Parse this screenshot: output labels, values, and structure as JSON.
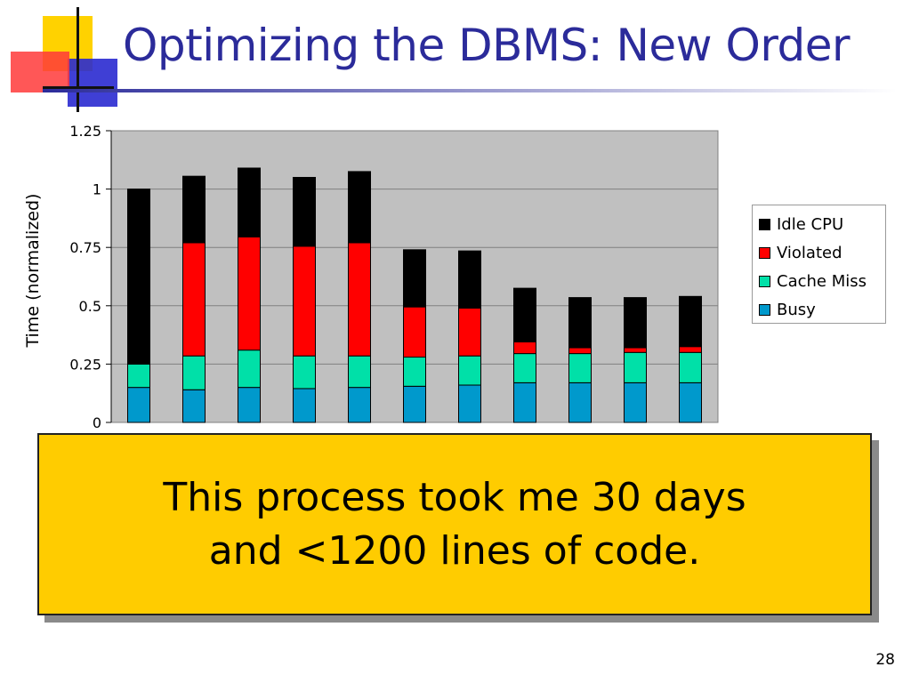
{
  "slide": {
    "title": "Optimizing the DBMS: New Order",
    "callout": {
      "line1": "This process took me 30 days",
      "line2": "and <1200 lines of code."
    },
    "page_number": "28"
  },
  "chart_data": {
    "type": "bar",
    "stacked": true,
    "title": "",
    "xlabel": "",
    "ylabel": "Time (normalized)",
    "ylim": [
      0,
      1.25
    ],
    "yticks": [
      "0",
      "0.25",
      "0.5",
      "0.75",
      "1",
      "1.25"
    ],
    "ytick_values": [
      0,
      0.25,
      0.5,
      0.75,
      1,
      1.25
    ],
    "grid": true,
    "legend_position": "right",
    "category_count": 11,
    "series": [
      {
        "name": "Busy",
        "color": "#0099cc",
        "values": [
          0.15,
          0.14,
          0.15,
          0.145,
          0.15,
          0.155,
          0.16,
          0.17,
          0.17,
          0.17,
          0.17
        ]
      },
      {
        "name": "Cache Miss",
        "color": "#00e0a8",
        "values": [
          0.1,
          0.145,
          0.16,
          0.14,
          0.135,
          0.125,
          0.125,
          0.125,
          0.125,
          0.13,
          0.13
        ]
      },
      {
        "name": "Violated",
        "color": "#ff0000",
        "values": [
          0.0,
          0.485,
          0.485,
          0.47,
          0.485,
          0.215,
          0.205,
          0.05,
          0.025,
          0.02,
          0.025
        ]
      },
      {
        "name": "Idle CPU",
        "color": "#000000",
        "values": [
          0.75,
          0.285,
          0.295,
          0.295,
          0.305,
          0.245,
          0.245,
          0.23,
          0.215,
          0.215,
          0.215
        ]
      }
    ],
    "legend_order": [
      "Idle CPU",
      "Violated",
      "Cache Miss",
      "Busy"
    ]
  },
  "colors": {
    "title": "#2b2b9a",
    "plot_background": "#c0c0c0",
    "callout_background": "#ffcc00",
    "deco_yellow": "#ffd200",
    "deco_red": "#ff3030",
    "deco_blue": "#2a2ad0"
  }
}
